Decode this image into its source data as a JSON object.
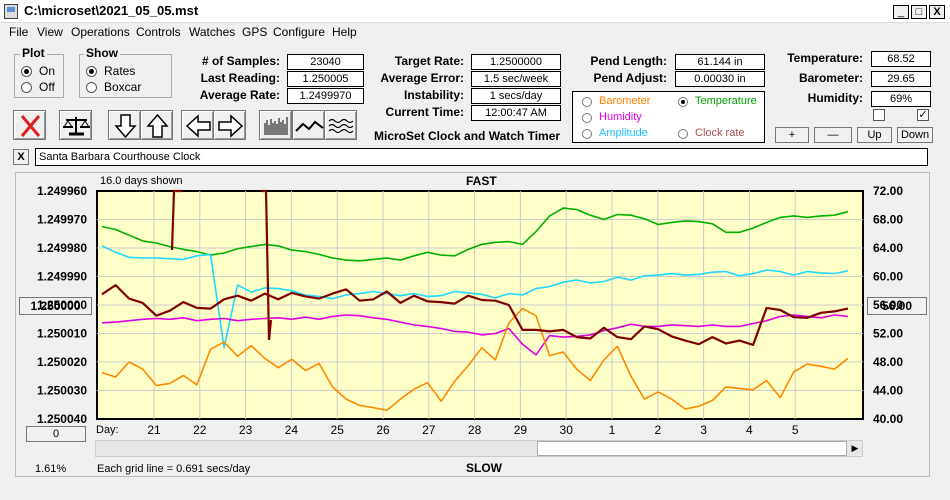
{
  "window": {
    "title": "C:\\microset\\2021_05_05.mst",
    "minimize": "_",
    "maximize": "□",
    "close": "X"
  },
  "menu": [
    "File",
    "View",
    "Operations",
    "Controls",
    "Watches",
    "GPS",
    "Configure",
    "Help"
  ],
  "plot": {
    "title": "Plot",
    "on": "On",
    "off": "Off",
    "selected": "On"
  },
  "show": {
    "title": "Show",
    "rates": "Rates",
    "boxcar": "Boxcar",
    "selected": "Rates"
  },
  "stats": {
    "samples_label": "# of Samples:",
    "samples": "23040",
    "last_label": "Last Reading:",
    "last": "1.250005",
    "avg_rate_label": "Average Rate:",
    "avg_rate": "1.2499970"
  },
  "target": {
    "rate_label": "Target Rate:",
    "rate": "1.2500000",
    "err_label": "Average Error:",
    "err": "1.5 sec/week",
    "inst_label": "Instability:",
    "inst": "1 secs/day",
    "time_label": "Current Time:",
    "time": "12:00:47 AM",
    "app_name": "MicroSet Clock and Watch Timer"
  },
  "pend": {
    "length_label": "Pend Length:",
    "length": "61.144 in",
    "adjust_label": "Pend Adjust:",
    "adjust": "0.00030 in"
  },
  "env": {
    "temp_label": "Temperature:",
    "temp": "68.52",
    "baro_label": "Barometer:",
    "baro": "29.65",
    "hum_label": "Humidity:",
    "hum": "69%"
  },
  "right_buttons": {
    "plus": "+",
    "minus": "—",
    "up": "Up",
    "down": "Down"
  },
  "legend": {
    "barometer": "Barometer",
    "temperature": "Temperature",
    "humidity": "Humidity",
    "amplitude": "Amplitude",
    "clock_rate": "Clock rate",
    "selected": "Temperature",
    "colors": {
      "barometer": "#ff8000",
      "temperature": "#00a000",
      "humidity": "#e000e0",
      "amplitude": "#20d0ff",
      "clock_rate": "#a05050"
    }
  },
  "description": {
    "close": "X",
    "text": "Santa Barbara Courthouse Clock"
  },
  "chart": {
    "days_shown": "16.0 days shown",
    "top_label": "FAST",
    "bottom_label": "SLOW",
    "left_button": "1.250000",
    "right_button": "56.00",
    "zero_button": "0",
    "percent": "1.61%",
    "grid_note": "Each grid line = 0.691 secs/day",
    "day_label": "Day:"
  },
  "chart_data": {
    "type": "line",
    "y_left_ticks": [
      "1.249960",
      "1.249970",
      "1.249980",
      "1.249990",
      "1.250000",
      "1.250010",
      "1.250020",
      "1.250030",
      "1.250040"
    ],
    "y_right_ticks": [
      "72.00",
      "68.00",
      "64.00",
      "60.00",
      "56.00",
      "52.00",
      "48.00",
      "44.00",
      "40.00"
    ],
    "x_ticks": [
      "21",
      "22",
      "23",
      "24",
      "25",
      "26",
      "27",
      "28",
      "29",
      "30",
      "1",
      "2",
      "3",
      "4",
      "5"
    ],
    "background": "#ffffc8",
    "series": [
      {
        "key": "temperature",
        "color": "#00b000",
        "values": [
          67.0,
          66.6,
          65.8,
          65.0,
          64.7,
          64.2,
          63.8,
          63.5,
          63.0,
          63.3,
          63.9,
          64.2,
          64.5,
          64.3,
          63.7,
          63.5,
          63.1,
          62.6,
          62.3,
          62.2,
          62.4,
          62.6,
          62.3,
          62.9,
          63.4,
          63.0,
          62.9,
          63.8,
          64.5,
          64.8,
          64.9,
          64.5,
          66.3,
          68.5,
          69.6,
          69.4,
          68.6,
          68.0,
          68.7,
          68.6,
          68.1,
          67.3,
          67.6,
          67.8,
          67.7,
          67.4,
          66.2,
          66.2,
          66.8,
          67.6,
          68.3,
          68.5,
          68.3,
          68.5,
          68.6,
          69.1
        ]
      },
      {
        "key": "amplitude",
        "color": "#20d8ff",
        "values": [
          64.3,
          63.4,
          62.7,
          62.6,
          62.6,
          62.5,
          62.4,
          62.9,
          63.1,
          50.0,
          58.8,
          57.8,
          58.4,
          58.3,
          58.0,
          57.4,
          57.2,
          56.9,
          57.4,
          57.6,
          57.9,
          57.6,
          57.3,
          57.6,
          57.2,
          57.3,
          57.9,
          57.7,
          57.5,
          57.0,
          57.6,
          57.4,
          58.3,
          58.6,
          59.2,
          59.5,
          59.1,
          59.3,
          59.9,
          59.5,
          60.1,
          60.2,
          60.4,
          60.2,
          60.3,
          60.6,
          60.7,
          60.1,
          60.4,
          60.9,
          60.7,
          60.2,
          60.7,
          60.5,
          60.4,
          60.8
        ]
      },
      {
        "key": "humidity",
        "color": "#e000e0",
        "values": [
          53.5,
          53.6,
          53.8,
          54.0,
          54.1,
          54.0,
          54.2,
          53.8,
          54.0,
          54.1,
          53.8,
          54.0,
          54.1,
          54.2,
          54.0,
          54.3,
          54.0,
          54.4,
          54.6,
          54.5,
          54.2,
          54.0,
          53.6,
          53.2,
          53.0,
          52.7,
          52.3,
          52.2,
          51.8,
          52.0,
          52.7,
          50.5,
          49.0,
          51.7,
          51.5,
          51.6,
          51.8,
          52.4,
          52.8,
          53.3,
          53.0,
          53.0,
          53.2,
          53.1,
          53.0,
          53.2,
          53.0,
          53.0,
          53.4,
          53.8,
          54.4,
          54.6,
          54.4,
          54.2,
          54.6,
          54.4
        ]
      },
      {
        "key": "barometer",
        "color": "#ff8800",
        "values": [
          46.5,
          45.9,
          48.0,
          47.0,
          44.7,
          45.0,
          46.1,
          44.8,
          49.8,
          50.8,
          48.8,
          50.3,
          48.5,
          47.2,
          48.4,
          46.8,
          47.8,
          44.5,
          42.8,
          41.9,
          41.6,
          41.2,
          42.8,
          44.2,
          45.1,
          42.5,
          45.3,
          47.5,
          50.0,
          48.3,
          53.5,
          55.5,
          54.5,
          48.9,
          49.4,
          47.0,
          45.4,
          48.3,
          50.2,
          46.0,
          42.8,
          43.8,
          42.8,
          41.4,
          41.8,
          42.6,
          44.5,
          44.3,
          44.1,
          45.4,
          43.0,
          46.6,
          47.7,
          47.4,
          47.0,
          48.5
        ]
      },
      {
        "key": "clock_rate",
        "color": "#800000",
        "values": [
          57.5,
          58.8,
          56.9,
          56.3,
          54.5,
          55.2,
          56.4,
          55.6,
          55.5,
          56.8,
          57.3,
          56.6,
          57.6,
          56.8,
          57.7,
          57.2,
          56.9,
          57.6,
          58.2,
          56.6,
          56.8,
          57.9,
          56.3,
          57.3,
          56.5,
          56.4,
          56.2,
          57.3,
          56.7,
          56.6,
          56.0,
          52.5,
          52.5,
          52.3,
          52.5,
          51.5,
          51.3,
          52.8,
          51.5,
          51.2,
          53.0,
          52.6,
          51.6,
          51.0,
          50.5,
          51.5,
          50.6,
          51.0,
          50.4,
          55.6,
          55.3,
          54.3,
          54.2,
          54.9,
          55.1,
          55.5
        ]
      }
    ]
  }
}
